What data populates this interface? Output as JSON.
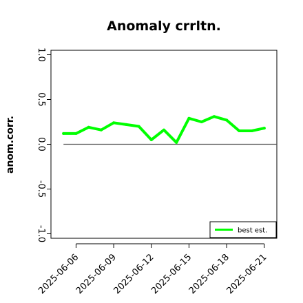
{
  "chart_data": {
    "type": "line",
    "title": "Anomaly crrltn.",
    "xlabel": "",
    "ylabel": "anom.corr.",
    "ylim": [
      -1.05,
      1.05
    ],
    "yticks": [
      -1.0,
      -0.5,
      0.0,
      0.5,
      1.0
    ],
    "ytick_labels": [
      "-1.0",
      "-0.5",
      "0.0",
      "0.5",
      "1.0"
    ],
    "xlim": [
      "2025-06-04",
      "2025-06-22"
    ],
    "xticks": [
      "2025-06-06",
      "2025-06-09",
      "2025-06-12",
      "2025-06-15",
      "2025-06-18",
      "2025-06-21"
    ],
    "highlighted_tick": "2025-06-12",
    "reference_line": {
      "y": 0.0,
      "from": "2025-06-05",
      "to": "2025-06-22",
      "color": "#555555"
    },
    "series": [
      {
        "name": "best est.",
        "color": "#00ff00",
        "x": [
          "2025-06-05",
          "2025-06-06",
          "2025-06-07",
          "2025-06-08",
          "2025-06-09",
          "2025-06-10",
          "2025-06-11",
          "2025-06-12",
          "2025-06-13",
          "2025-06-14",
          "2025-06-15",
          "2025-06-16",
          "2025-06-17",
          "2025-06-18",
          "2025-06-19",
          "2025-06-20",
          "2025-06-21"
        ],
        "values": [
          0.12,
          0.12,
          0.19,
          0.16,
          0.24,
          0.22,
          0.2,
          0.05,
          0.16,
          0.02,
          0.29,
          0.25,
          0.31,
          0.27,
          0.15,
          0.15,
          0.18
        ]
      }
    ],
    "legend": {
      "position": "bottom-right",
      "entries": [
        "best est."
      ]
    },
    "colors": {
      "tick_highlight": "#2e7d32",
      "axis": "#000000"
    },
    "grid": false
  }
}
